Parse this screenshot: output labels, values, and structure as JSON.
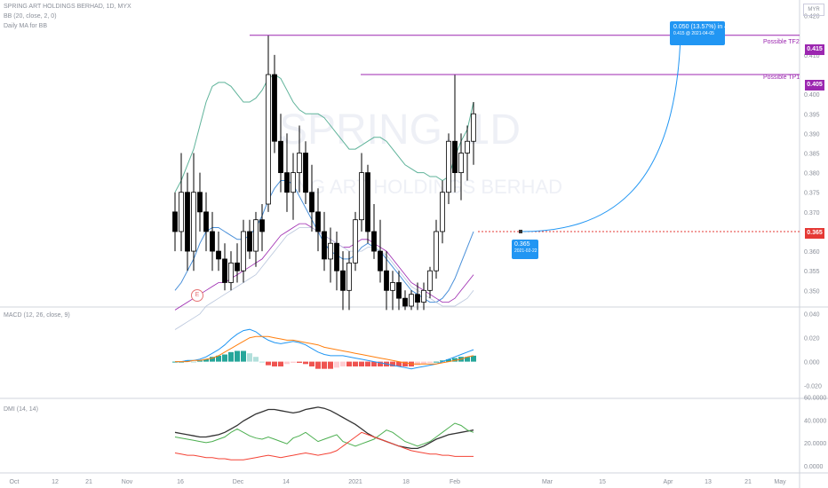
{
  "header": {
    "symbol_line": "SPRING ART HOLDINGS BERHAD, 1D, MYX",
    "bb_line": "BB (20, close, 2, 0)",
    "ma_line": "Daily MA for BB"
  },
  "currency": "MYR",
  "watermark": {
    "big": "SPRING, 1D",
    "small": "ING ART HOLDINGS BERHAD"
  },
  "targets": [
    {
      "label": "Possible TF2",
      "price": "0.415"
    },
    {
      "label": "Possible TP1",
      "price": "0.405"
    }
  ],
  "entry": {
    "price_tag": "0.365",
    "callout_price": "0.365",
    "callout_date": "2021-02-22"
  },
  "projection": {
    "title": "0.050 (13.57%) in 42d",
    "sub": "0.415 @ 2021-04-05"
  },
  "earnings_marker": "E",
  "macd_label": "MACD (12, 26, close, 9)",
  "dmi_label": "DMI (14, 14)",
  "colors": {
    "up_candle": "#ffffff",
    "down_candle": "#000000",
    "bb_upper": "#5fb39a",
    "ma_blue": "#4a90d9",
    "ma_purple": "#9c27b0",
    "target_line": "#9c27b0",
    "entry_line": "#e53935",
    "projection": "#2196f3",
    "macd_line": "#2196f3",
    "signal_line": "#ff7f0e",
    "hist_up": "#26a69a",
    "hist_down": "#ef5350",
    "dmi_adx": "#333333",
    "dmi_plus": "#4caf50",
    "dmi_minus": "#f44336"
  },
  "chart_data": {
    "type": "candlestick",
    "x_labels": [
      "Oct",
      "12",
      "21",
      "Nov",
      "16",
      "Dec",
      "14",
      "2021",
      "18",
      "Feb",
      "Mar",
      "15",
      "Apr",
      "13",
      "21",
      "May"
    ],
    "price_axis": {
      "min": 0.35,
      "max": 0.42,
      "ticks": [
        "0.420",
        "0.415",
        "0.410",
        "0.405",
        "0.400",
        "0.395",
        "0.390",
        "0.385",
        "0.380",
        "0.375",
        "0.370",
        "0.365",
        "0.360",
        "0.355",
        "0.350"
      ]
    },
    "macd_axis": {
      "ticks": [
        "0.040",
        "0.020",
        "0.000",
        "-0.020"
      ]
    },
    "dmi_axis": {
      "ticks": [
        "60.0000",
        "40.0000",
        "20.0000",
        "0.0000"
      ]
    },
    "candles": [
      [
        0.37,
        0.375,
        0.36,
        0.365
      ],
      [
        0.365,
        0.385,
        0.36,
        0.375
      ],
      [
        0.375,
        0.38,
        0.355,
        0.36
      ],
      [
        0.36,
        0.385,
        0.355,
        0.375
      ],
      [
        0.375,
        0.38,
        0.365,
        0.37
      ],
      [
        0.37,
        0.375,
        0.36,
        0.365
      ],
      [
        0.365,
        0.37,
        0.355,
        0.36
      ],
      [
        0.36,
        0.365,
        0.355,
        0.358
      ],
      [
        0.358,
        0.362,
        0.35,
        0.352
      ],
      [
        0.352,
        0.36,
        0.35,
        0.357
      ],
      [
        0.357,
        0.362,
        0.352,
        0.355
      ],
      [
        0.355,
        0.368,
        0.352,
        0.365
      ],
      [
        0.365,
        0.368,
        0.358,
        0.36
      ],
      [
        0.36,
        0.37,
        0.356,
        0.368
      ],
      [
        0.368,
        0.372,
        0.36,
        0.365
      ],
      [
        0.372,
        0.415,
        0.37,
        0.405
      ],
      [
        0.405,
        0.41,
        0.385,
        0.388
      ],
      [
        0.388,
        0.395,
        0.375,
        0.38
      ],
      [
        0.38,
        0.39,
        0.37,
        0.375
      ],
      [
        0.375,
        0.385,
        0.368,
        0.38
      ],
      [
        0.38,
        0.392,
        0.375,
        0.385
      ],
      [
        0.385,
        0.388,
        0.372,
        0.375
      ],
      [
        0.375,
        0.382,
        0.365,
        0.37
      ],
      [
        0.37,
        0.376,
        0.36,
        0.365
      ],
      [
        0.365,
        0.37,
        0.355,
        0.358
      ],
      [
        0.358,
        0.366,
        0.352,
        0.362
      ],
      [
        0.362,
        0.365,
        0.35,
        0.355
      ],
      [
        0.355,
        0.36,
        0.345,
        0.35
      ],
      [
        0.35,
        0.36,
        0.345,
        0.357
      ],
      [
        0.357,
        0.37,
        0.355,
        0.368
      ],
      [
        0.368,
        0.385,
        0.365,
        0.38
      ],
      [
        0.38,
        0.382,
        0.362,
        0.365
      ],
      [
        0.365,
        0.372,
        0.358,
        0.36
      ],
      [
        0.36,
        0.368,
        0.352,
        0.355
      ],
      [
        0.355,
        0.36,
        0.345,
        0.35
      ],
      [
        0.35,
        0.355,
        0.345,
        0.352
      ],
      [
        0.352,
        0.355,
        0.345,
        0.348
      ],
      [
        0.348,
        0.35,
        0.345,
        0.346
      ],
      [
        0.346,
        0.35,
        0.345,
        0.349
      ],
      [
        0.349,
        0.352,
        0.345,
        0.347
      ],
      [
        0.347,
        0.352,
        0.345,
        0.35
      ],
      [
        0.35,
        0.356,
        0.348,
        0.355
      ],
      [
        0.355,
        0.368,
        0.353,
        0.365
      ],
      [
        0.365,
        0.378,
        0.362,
        0.375
      ],
      [
        0.375,
        0.39,
        0.372,
        0.388
      ],
      [
        0.388,
        0.405,
        0.375,
        0.38
      ],
      [
        0.38,
        0.39,
        0.373,
        0.385
      ],
      [
        0.385,
        0.392,
        0.378,
        0.388
      ],
      [
        0.388,
        0.398,
        0.382,
        0.395
      ]
    ],
    "bb_upper": [
      0.375,
      0.378,
      0.382,
      0.386,
      0.392,
      0.398,
      0.402,
      0.403,
      0.403,
      0.402,
      0.4,
      0.398,
      0.398,
      0.399,
      0.401,
      0.404,
      0.405,
      0.404,
      0.401,
      0.398,
      0.396,
      0.395,
      0.395,
      0.395,
      0.394,
      0.392,
      0.39,
      0.388,
      0.386,
      0.386,
      0.387,
      0.388,
      0.389,
      0.389,
      0.388,
      0.386,
      0.384,
      0.382,
      0.381,
      0.38,
      0.38,
      0.379,
      0.379,
      0.378,
      0.379,
      0.384,
      0.388,
      0.391,
      0.398
    ],
    "ma_blue": [
      0.35,
      0.352,
      0.355,
      0.358,
      0.362,
      0.365,
      0.366,
      0.366,
      0.365,
      0.364,
      0.363,
      0.363,
      0.364,
      0.366,
      0.369,
      0.373,
      0.376,
      0.378,
      0.378,
      0.377,
      0.374,
      0.371,
      0.368,
      0.365,
      0.362,
      0.36,
      0.359,
      0.358,
      0.358,
      0.359,
      0.361,
      0.362,
      0.361,
      0.36,
      0.358,
      0.356,
      0.354,
      0.352,
      0.35,
      0.349,
      0.348,
      0.347,
      0.347,
      0.348,
      0.35,
      0.353,
      0.357,
      0.361,
      0.365
    ],
    "ma_purple": [
      0.345,
      0.346,
      0.347,
      0.348,
      0.349,
      0.35,
      0.351,
      0.352,
      0.352,
      0.353,
      0.354,
      0.355,
      0.356,
      0.357,
      0.358,
      0.36,
      0.362,
      0.364,
      0.365,
      0.366,
      0.367,
      0.367,
      0.366,
      0.365,
      0.364,
      0.363,
      0.362,
      0.361,
      0.361,
      0.362,
      0.363,
      0.363,
      0.362,
      0.361,
      0.36,
      0.358,
      0.356,
      0.354,
      0.352,
      0.351,
      0.35,
      0.349,
      0.348,
      0.347,
      0.347,
      0.348,
      0.35,
      0.352,
      0.354
    ],
    "ma_light": [
      0.34,
      0.341,
      0.342,
      0.343,
      0.344,
      0.346,
      0.347,
      0.348,
      0.349,
      0.35,
      0.351,
      0.352,
      0.353,
      0.354,
      0.356,
      0.358,
      0.36,
      0.362,
      0.364,
      0.365,
      0.366,
      0.366,
      0.366,
      0.365,
      0.364,
      0.363,
      0.362,
      0.361,
      0.36,
      0.36,
      0.36,
      0.361,
      0.361,
      0.36,
      0.359,
      0.357,
      0.355,
      0.353,
      0.351,
      0.35,
      0.349,
      0.348,
      0.347,
      0.346,
      0.346,
      0.346,
      0.347,
      0.348,
      0.35
    ],
    "macd": [
      0.0,
      0.0,
      0.001,
      0.001,
      0.002,
      0.004,
      0.007,
      0.01,
      0.014,
      0.019,
      0.023,
      0.026,
      0.027,
      0.025,
      0.021,
      0.018,
      0.016,
      0.015,
      0.016,
      0.017,
      0.016,
      0.014,
      0.011,
      0.008,
      0.006,
      0.005,
      0.005,
      0.005,
      0.004,
      0.003,
      0.002,
      0.001,
      0.0,
      -0.001,
      -0.002,
      -0.003,
      -0.004,
      -0.005,
      -0.006,
      -0.005,
      -0.004,
      -0.003,
      -0.002,
      0.0,
      0.002,
      0.004,
      0.006,
      0.008,
      0.01
    ],
    "macd_signal": [
      0.0,
      0.0,
      0.0,
      0.001,
      0.001,
      0.002,
      0.003,
      0.005,
      0.008,
      0.011,
      0.014,
      0.017,
      0.02,
      0.021,
      0.021,
      0.021,
      0.02,
      0.019,
      0.018,
      0.018,
      0.017,
      0.016,
      0.015,
      0.014,
      0.012,
      0.011,
      0.01,
      0.009,
      0.008,
      0.007,
      0.006,
      0.005,
      0.004,
      0.003,
      0.002,
      0.001,
      0.0,
      -0.001,
      -0.002,
      -0.002,
      -0.002,
      -0.002,
      -0.002,
      -0.001,
      0.0,
      0.001,
      0.002,
      0.004,
      0.005
    ],
    "macd_hist": [
      0.0,
      0.0,
      0.001,
      0.0,
      0.001,
      0.002,
      0.004,
      0.005,
      0.006,
      0.008,
      0.009,
      0.009,
      0.007,
      0.004,
      0.0,
      -0.003,
      -0.004,
      -0.004,
      -0.002,
      -0.001,
      -0.001,
      -0.002,
      -0.004,
      -0.006,
      -0.006,
      -0.006,
      -0.005,
      -0.004,
      -0.004,
      -0.004,
      -0.004,
      -0.004,
      -0.004,
      -0.004,
      -0.004,
      -0.004,
      -0.004,
      -0.004,
      -0.004,
      -0.003,
      -0.002,
      -0.001,
      0.0,
      0.001,
      0.002,
      0.003,
      0.004,
      0.004,
      0.005
    ],
    "dmi_adx": [
      30,
      29,
      28,
      27,
      26,
      26,
      27,
      28,
      30,
      33,
      36,
      40,
      43,
      46,
      48,
      50,
      50,
      49,
      48,
      47,
      48,
      50,
      51,
      52,
      51,
      49,
      46,
      43,
      40,
      37,
      33,
      29,
      26,
      24,
      22,
      20,
      18,
      17,
      16,
      16,
      18,
      21,
      24,
      26,
      28,
      29,
      30,
      31,
      32
    ],
    "dmi_plus": [
      26,
      25,
      24,
      23,
      22,
      21,
      22,
      24,
      26,
      30,
      33,
      30,
      27,
      25,
      24,
      26,
      24,
      22,
      20,
      25,
      27,
      30,
      26,
      22,
      24,
      26,
      28,
      22,
      20,
      18,
      20,
      22,
      24,
      28,
      32,
      30,
      26,
      22,
      20,
      18,
      20,
      22,
      26,
      30,
      34,
      38,
      36,
      32,
      30
    ],
    "dmi_minus": [
      12,
      11,
      10,
      10,
      9,
      8,
      8,
      7,
      7,
      6,
      6,
      6,
      7,
      8,
      9,
      10,
      9,
      8,
      9,
      10,
      11,
      12,
      11,
      10,
      11,
      12,
      14,
      18,
      22,
      26,
      30,
      28,
      26,
      24,
      22,
      20,
      18,
      16,
      14,
      13,
      12,
      11,
      11,
      10,
      10,
      9,
      9,
      9,
      9
    ]
  }
}
